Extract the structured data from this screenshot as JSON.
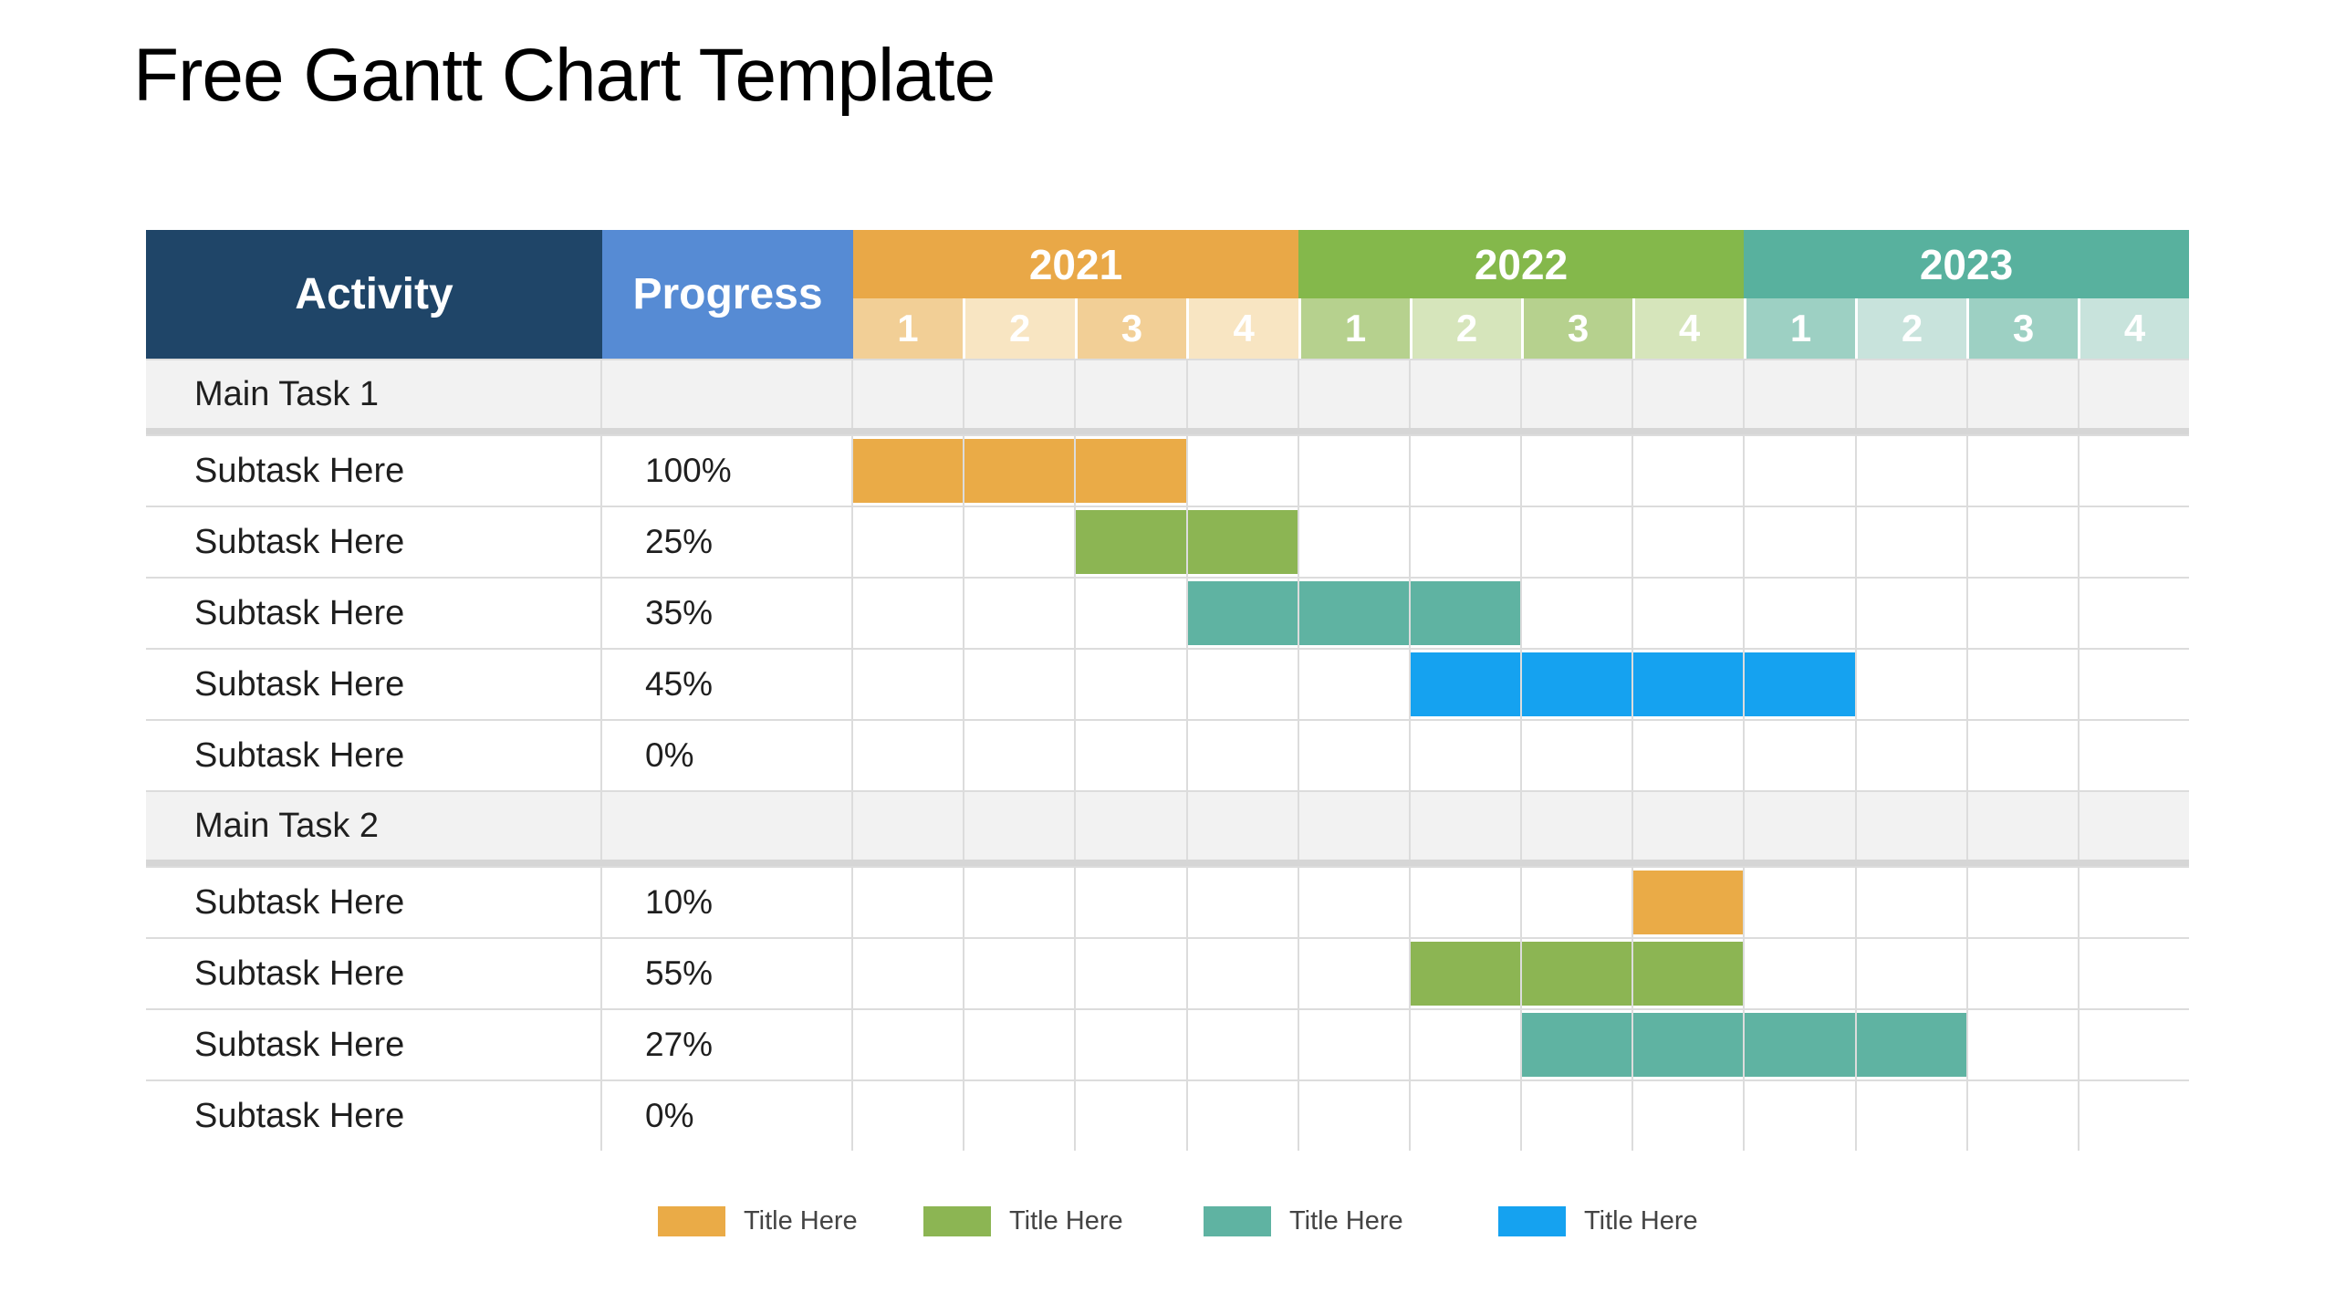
{
  "page": {
    "title": "Free Gantt Chart Template"
  },
  "table": {
    "headers": {
      "activity": "Activity",
      "progress": "Progress"
    },
    "years": [
      {
        "label": "2021",
        "band_color": "#E9A847",
        "tint_odd": "#F2CF96",
        "tint_even": "#F8E5C2",
        "quarters": [
          "1",
          "2",
          "3",
          "4"
        ]
      },
      {
        "label": "2022",
        "band_color": "#84B84B",
        "tint_odd": "#B6D18E",
        "tint_even": "#D6E5BB",
        "quarters": [
          "1",
          "2",
          "3",
          "4"
        ]
      },
      {
        "label": "2023",
        "band_color": "#58B19E",
        "tint_odd": "#9DD0C3",
        "tint_even": "#C8E3DC",
        "quarters": [
          "1",
          "2",
          "3",
          "4"
        ]
      }
    ],
    "rows": [
      {
        "type": "main",
        "label": "Main Task 1",
        "progress": "",
        "bar": null
      },
      {
        "type": "sub",
        "label": "Subtask Here",
        "progress": "100%",
        "bar": {
          "start_index": 0,
          "span": 3,
          "color_key": "bar_orange"
        }
      },
      {
        "type": "sub",
        "label": "Subtask Here",
        "progress": "25%",
        "bar": {
          "start_index": 2,
          "span": 2,
          "color_key": "bar_green"
        }
      },
      {
        "type": "sub",
        "label": "Subtask Here",
        "progress": "35%",
        "bar": {
          "start_index": 3,
          "span": 3,
          "color_key": "bar_teal"
        }
      },
      {
        "type": "sub",
        "label": "Subtask Here",
        "progress": "45%",
        "bar": {
          "start_index": 5,
          "span": 4,
          "color_key": "bar_blue"
        }
      },
      {
        "type": "sub",
        "label": "Subtask Here",
        "progress": "0%",
        "bar": null
      },
      {
        "type": "main",
        "label": "Main Task 2",
        "progress": "",
        "bar": null
      },
      {
        "type": "sub",
        "label": "Subtask Here",
        "progress": "10%",
        "bar": {
          "start_index": 7,
          "span": 1,
          "color_key": "bar_orange"
        }
      },
      {
        "type": "sub",
        "label": "Subtask Here",
        "progress": "55%",
        "bar": {
          "start_index": 5,
          "span": 3,
          "color_key": "bar_green"
        }
      },
      {
        "type": "sub",
        "label": "Subtask Here",
        "progress": "27%",
        "bar": {
          "start_index": 6,
          "span": 4,
          "color_key": "bar_teal"
        }
      },
      {
        "type": "sub",
        "label": "Subtask Here",
        "progress": "0%",
        "bar": null
      }
    ]
  },
  "colors": {
    "activity_header": "#1F4568",
    "progress_header": "#568BD4",
    "bar_orange": "#EAAB47",
    "bar_green": "#8CB553",
    "bar_teal": "#5FB3A2",
    "bar_blue": "#15A2F0",
    "main_row_bg": "#F2F2F2",
    "grid_line": "#DCDCDC"
  },
  "legend": [
    {
      "label": "Title Here",
      "color": "#EAAB47"
    },
    {
      "label": "Title Here",
      "color": "#8CB553"
    },
    {
      "label": "Title Here",
      "color": "#5FB3A2"
    },
    {
      "label": "Title Here",
      "color": "#15A2F0"
    }
  ],
  "chart_data": {
    "type": "gantt",
    "title": "Free Gantt Chart Template",
    "timeline_years": [
      "2021",
      "2022",
      "2023"
    ],
    "quarters_per_year": 4,
    "quarter_labels": [
      "1",
      "2",
      "3",
      "4"
    ],
    "tasks": [
      {
        "name": "Main Task 1",
        "is_group": true,
        "progress": null,
        "start": null,
        "end": null,
        "color": null
      },
      {
        "name": "Subtask Here",
        "is_group": false,
        "progress": "100%",
        "start": "2021-Q1",
        "end": "2021-Q3",
        "color": "#EAAB47"
      },
      {
        "name": "Subtask Here",
        "is_group": false,
        "progress": "25%",
        "start": "2021-Q3",
        "end": "2021-Q4",
        "color": "#8CB553"
      },
      {
        "name": "Subtask Here",
        "is_group": false,
        "progress": "35%",
        "start": "2021-Q4",
        "end": "2022-Q2",
        "color": "#5FB3A2"
      },
      {
        "name": "Subtask Here",
        "is_group": false,
        "progress": "45%",
        "start": "2022-Q2",
        "end": "2023-Q1",
        "color": "#15A2F0"
      },
      {
        "name": "Subtask Here",
        "is_group": false,
        "progress": "0%",
        "start": null,
        "end": null,
        "color": null
      },
      {
        "name": "Main Task 2",
        "is_group": true,
        "progress": null,
        "start": null,
        "end": null,
        "color": null
      },
      {
        "name": "Subtask Here",
        "is_group": false,
        "progress": "10%",
        "start": "2022-Q4",
        "end": "2022-Q4",
        "color": "#EAAB47"
      },
      {
        "name": "Subtask Here",
        "is_group": false,
        "progress": "55%",
        "start": "2022-Q2",
        "end": "2022-Q4",
        "color": "#8CB553"
      },
      {
        "name": "Subtask Here",
        "is_group": false,
        "progress": "27%",
        "start": "2022-Q3",
        "end": "2023-Q2",
        "color": "#5FB3A2"
      },
      {
        "name": "Subtask Here",
        "is_group": false,
        "progress": "0%",
        "start": null,
        "end": null,
        "color": null
      }
    ],
    "legend_labels": [
      "Title Here",
      "Title Here",
      "Title Here",
      "Title Here"
    ],
    "legend_position": "bottom",
    "grid": true
  }
}
